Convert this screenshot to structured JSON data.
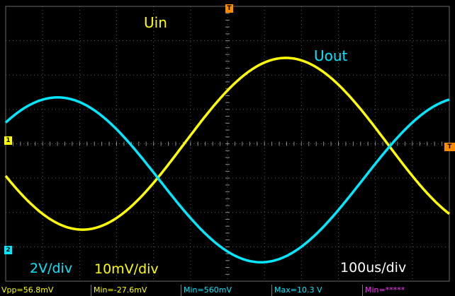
{
  "labels": {
    "uin": "Uin",
    "uout": "Uout",
    "ch2_scale": "2V/div",
    "ch1_scale": "10mV/div",
    "timebase": "100us/div"
  },
  "measurements": [
    {
      "text": "Vpp=56.8mV",
      "color": "#ffff00"
    },
    {
      "text": "Min=-27.6mV",
      "color": "#ffff00"
    },
    {
      "text": "Min=560mV",
      "color": "#00e8ff"
    },
    {
      "text": "Max=10.3 V",
      "color": "#00e8ff"
    },
    {
      "text": "Min=*****",
      "color": "#ff33ff"
    }
  ],
  "markers": {
    "ch1": "1",
    "ch2": "2",
    "trigger_top": "T",
    "trigger_right": "T"
  },
  "colors": {
    "ch1": "#ffff00",
    "ch2": "#00e8ff",
    "grid": "#5a5a5a",
    "trigger": "#ff8c00",
    "ch4": "#ff33ff"
  },
  "chart_data": {
    "type": "line",
    "grid": true,
    "grid_divisions": {
      "x": 12,
      "y": 8
    },
    "xlim": [
      0,
      12
    ],
    "ylim": [
      -4,
      4
    ],
    "series": [
      {
        "name": "Uin",
        "color": "#ffff00",
        "amplitude_div": 2.5,
        "offset_div": 0.0,
        "period_div": 11.0,
        "phase_deg": 202
      },
      {
        "name": "Uout",
        "color": "#00e8ff",
        "amplitude_div": 2.4,
        "offset_div": -1.05,
        "period_div": 11.0,
        "phase_deg": 44
      }
    ]
  }
}
